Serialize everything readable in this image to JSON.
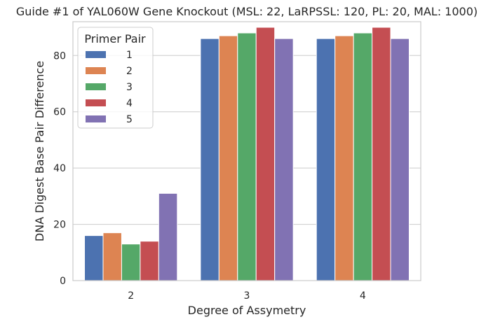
{
  "chart_data": {
    "type": "bar",
    "title": "Guide #1 of YAL060W Gene Knockout (MSL: 22, LaRPSSL: 120, PL: 20, MAL: 1000)",
    "xlabel": "Degree of Assymetry",
    "ylabel": "DNA Digest Base Pair Difference",
    "categories": [
      "2",
      "3",
      "4"
    ],
    "ylim": [
      0,
      92
    ],
    "yticks": [
      0,
      20,
      40,
      60,
      80
    ],
    "grid": "y",
    "legend": {
      "title": "Primer Pair",
      "placement": "top-left"
    },
    "series": [
      {
        "name": "1",
        "color": "#4c72b0",
        "values": [
          16,
          86,
          86
        ]
      },
      {
        "name": "2",
        "color": "#dd8452",
        "values": [
          17,
          87,
          87
        ]
      },
      {
        "name": "3",
        "color": "#55a868",
        "values": [
          13,
          88,
          88
        ]
      },
      {
        "name": "4",
        "color": "#c44e52",
        "values": [
          14,
          90,
          90
        ]
      },
      {
        "name": "5",
        "color": "#8172b3",
        "values": [
          31,
          86,
          86
        ]
      }
    ]
  }
}
